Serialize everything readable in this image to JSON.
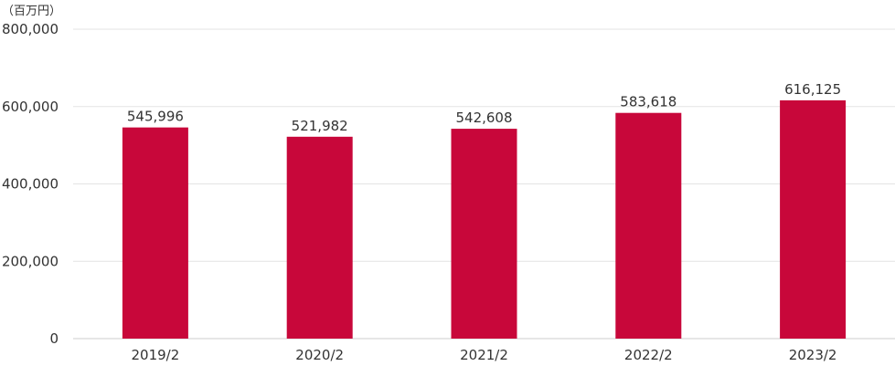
{
  "chart_data": {
    "type": "bar",
    "unit_label": "（百万円）",
    "categories": [
      "2019/2",
      "2020/2",
      "2021/2",
      "2022/2",
      "2023/2"
    ],
    "values": [
      545996,
      521982,
      542608,
      583618,
      616125
    ],
    "value_labels": [
      "545,996",
      "521,982",
      "542,608",
      "583,618",
      "616,125"
    ],
    "ylim": [
      0,
      800000
    ],
    "yticks": [
      0,
      200000,
      400000,
      600000,
      800000
    ],
    "ytick_labels": [
      "0",
      "200,000",
      "400,000",
      "600,000",
      "800,000"
    ],
    "grid": true,
    "legend": "none",
    "colors": {
      "bar": "#c8073a",
      "grid": "#e3e3e3",
      "axis": "#cccccc",
      "text": "#333333"
    }
  }
}
